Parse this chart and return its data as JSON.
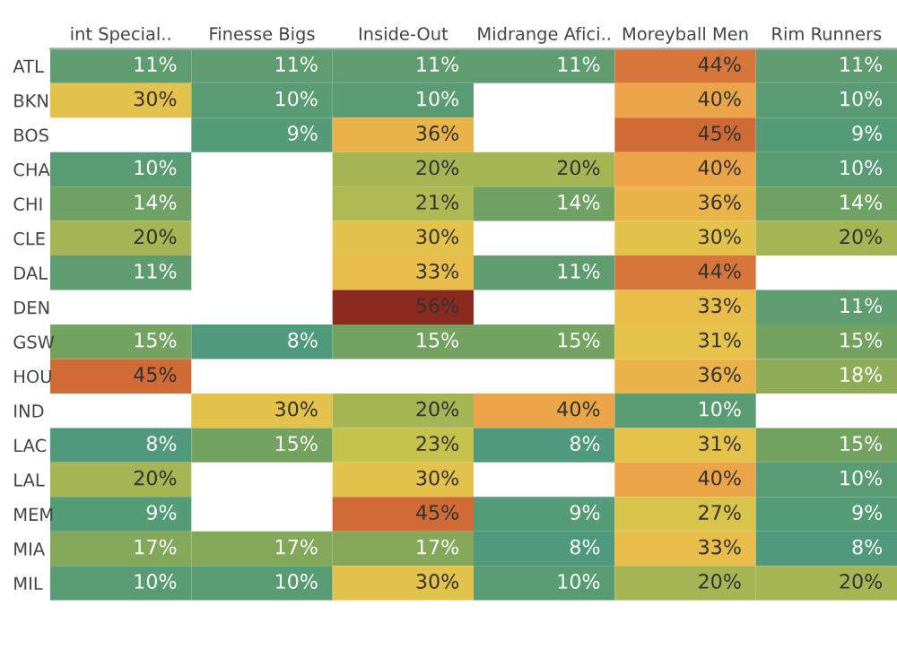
{
  "chart_data": {
    "type": "heatmap",
    "categories": [
      "int Special..",
      "Finesse Bigs",
      "Inside-Out",
      "Midrange Afici..",
      "Moreyball Men",
      "Rim Runners"
    ],
    "y_categories": [
      "ATL",
      "BKN",
      "BOS",
      "CHA",
      "CHI",
      "CLE",
      "DAL",
      "DEN",
      "GSW",
      "HOU",
      "IND",
      "LAC",
      "LAL",
      "MEM",
      "MIA",
      "MIL"
    ],
    "cells": [
      [
        11,
        11,
        11,
        11,
        44,
        11
      ],
      [
        30,
        10,
        10,
        null,
        40,
        10
      ],
      [
        null,
        9,
        36,
        null,
        45,
        9
      ],
      [
        10,
        null,
        20,
        20,
        40,
        10
      ],
      [
        14,
        null,
        21,
        14,
        36,
        14
      ],
      [
        20,
        null,
        30,
        null,
        30,
        20
      ],
      [
        11,
        null,
        33,
        11,
        44,
        null
      ],
      [
        null,
        null,
        56,
        null,
        33,
        11
      ],
      [
        15,
        8,
        15,
        15,
        31,
        15
      ],
      [
        45,
        null,
        null,
        null,
        36,
        18
      ],
      [
        null,
        30,
        20,
        40,
        10,
        null
      ],
      [
        8,
        15,
        23,
        8,
        31,
        15
      ],
      [
        20,
        null,
        30,
        null,
        40,
        10
      ],
      [
        9,
        null,
        45,
        9,
        27,
        9
      ],
      [
        17,
        17,
        17,
        8,
        33,
        8
      ],
      [
        10,
        10,
        30,
        10,
        20,
        20
      ]
    ],
    "cell_labels": [
      [
        "11%",
        "11%",
        "11%",
        "11%",
        "44%",
        "11%"
      ],
      [
        "30%",
        "10%",
        "10%",
        null,
        "40%",
        "10%"
      ],
      [
        null,
        "9%",
        "36%",
        null,
        "45%",
        "9%"
      ],
      [
        "10%",
        null,
        "20%",
        "20%",
        "40%",
        "10%"
      ],
      [
        "14%",
        null,
        "21%",
        "14%",
        "36%",
        "14%"
      ],
      [
        "20%",
        null,
        "30%",
        null,
        "30%",
        "20%"
      ],
      [
        "11%",
        null,
        "33%",
        "11%",
        "44%",
        null
      ],
      [
        null,
        null,
        "56%",
        null,
        "33%",
        "11%"
      ],
      [
        "15%",
        "8%",
        "15%",
        "15%",
        "31%",
        "15%"
      ],
      [
        "45%",
        null,
        null,
        null,
        "36%",
        "18%"
      ],
      [
        null,
        "30%",
        "20%",
        "40%",
        "10%",
        null
      ],
      [
        "8%",
        "15%",
        "23%",
        "8%",
        "31%",
        "15%"
      ],
      [
        "20%",
        null,
        "30%",
        null,
        "40%",
        "10%"
      ],
      [
        "9%",
        null,
        "45%",
        "9%",
        "27%",
        "9%"
      ],
      [
        "17%",
        "17%",
        "17%",
        "8%",
        "33%",
        "8%"
      ],
      [
        "10%",
        "10%",
        "30%",
        "10%",
        "20%",
        "20%"
      ]
    ]
  }
}
